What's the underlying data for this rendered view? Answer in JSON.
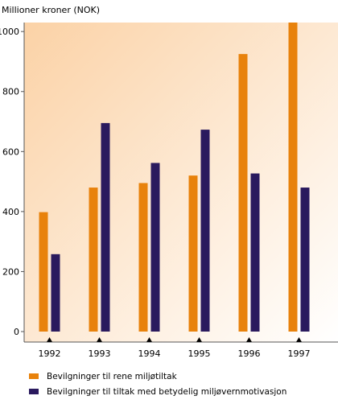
{
  "chart_data": {
    "type": "bar",
    "ylabel": "Millioner kroner (NOK)",
    "categories": [
      "1992",
      "1993",
      "1994",
      "1995",
      "1996",
      "1997"
    ],
    "series": [
      {
        "name": "Bevilgninger til rene miljøtiltak",
        "color": "#e8820c",
        "values": [
          398,
          480,
          495,
          520,
          925,
          1030
        ]
      },
      {
        "name": "Bevilgninger til tiltak med betydelig miljøvernmotivasjon",
        "color": "#2a1a5e",
        "values": [
          258,
          695,
          562,
          673,
          527,
          480
        ]
      }
    ],
    "yticks": [
      0,
      200,
      400,
      600,
      800,
      1000
    ],
    "ylim": [
      0,
      1030
    ],
    "legend_position": "bottom",
    "background_gradient": [
      "#fbd2a6",
      "#ffffff"
    ]
  }
}
